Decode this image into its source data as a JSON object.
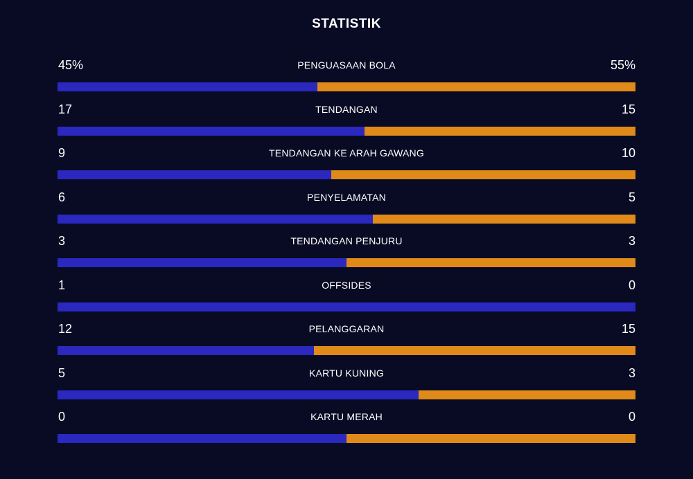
{
  "title": "STATISTIK",
  "colors": {
    "background": "#090a24",
    "home": "#2a28be",
    "away": "#df8a19",
    "text": "#ffffff"
  },
  "stats": [
    {
      "label": "PENGUASAAN BOLA",
      "home": "45%",
      "away": "55%",
      "home_share": 0.45
    },
    {
      "label": "TENDANGAN",
      "home": "17",
      "away": "15",
      "home_share": 0.531
    },
    {
      "label": "TENDANGAN KE ARAH GAWANG",
      "home": "9",
      "away": "10",
      "home_share": 0.474
    },
    {
      "label": "PENYELAMATAN",
      "home": "6",
      "away": "5",
      "home_share": 0.545
    },
    {
      "label": "TENDANGAN PENJURU",
      "home": "3",
      "away": "3",
      "home_share": 0.5
    },
    {
      "label": "OFFSIDES",
      "home": "1",
      "away": "0",
      "home_share": 1.0
    },
    {
      "label": "PELANGGARAN",
      "home": "12",
      "away": "15",
      "home_share": 0.444
    },
    {
      "label": "KARTU KUNING",
      "home": "5",
      "away": "3",
      "home_share": 0.625
    },
    {
      "label": "KARTU MERAH",
      "home": "0",
      "away": "0",
      "home_share": 0.5
    }
  ]
}
